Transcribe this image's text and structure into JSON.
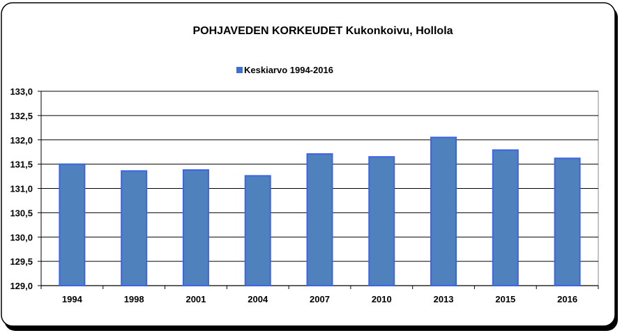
{
  "chart_data": {
    "type": "bar",
    "title_bold": "POHJAVEDEN KORKEUDET",
    "title_rest": " Kukonkoivu, Hollola",
    "series": [
      {
        "name": "Keskiarvo 1994-2016",
        "values": [
          131.5,
          131.36,
          131.38,
          131.26,
          131.71,
          131.65,
          132.05,
          131.79,
          131.62
        ]
      }
    ],
    "categories": [
      "1994",
      "1998",
      "2001",
      "2004",
      "2007",
      "2010",
      "2013",
      "2015",
      "2016"
    ],
    "ylim": [
      129.0,
      133.0
    ],
    "yticks": [
      "129,0",
      "129,5",
      "130,0",
      "130,5",
      "131,0",
      "131,5",
      "132,0",
      "132,5",
      "133,0"
    ],
    "ytick_values": [
      129.0,
      129.5,
      130.0,
      130.5,
      131.0,
      131.5,
      132.0,
      132.5,
      133.0
    ],
    "grid": true,
    "legend_position": "top-center",
    "colors": {
      "bar_fill": "#4f81bd",
      "bar_stroke": "#3d63e6",
      "legend_swatch": "#3a6fd8"
    }
  }
}
